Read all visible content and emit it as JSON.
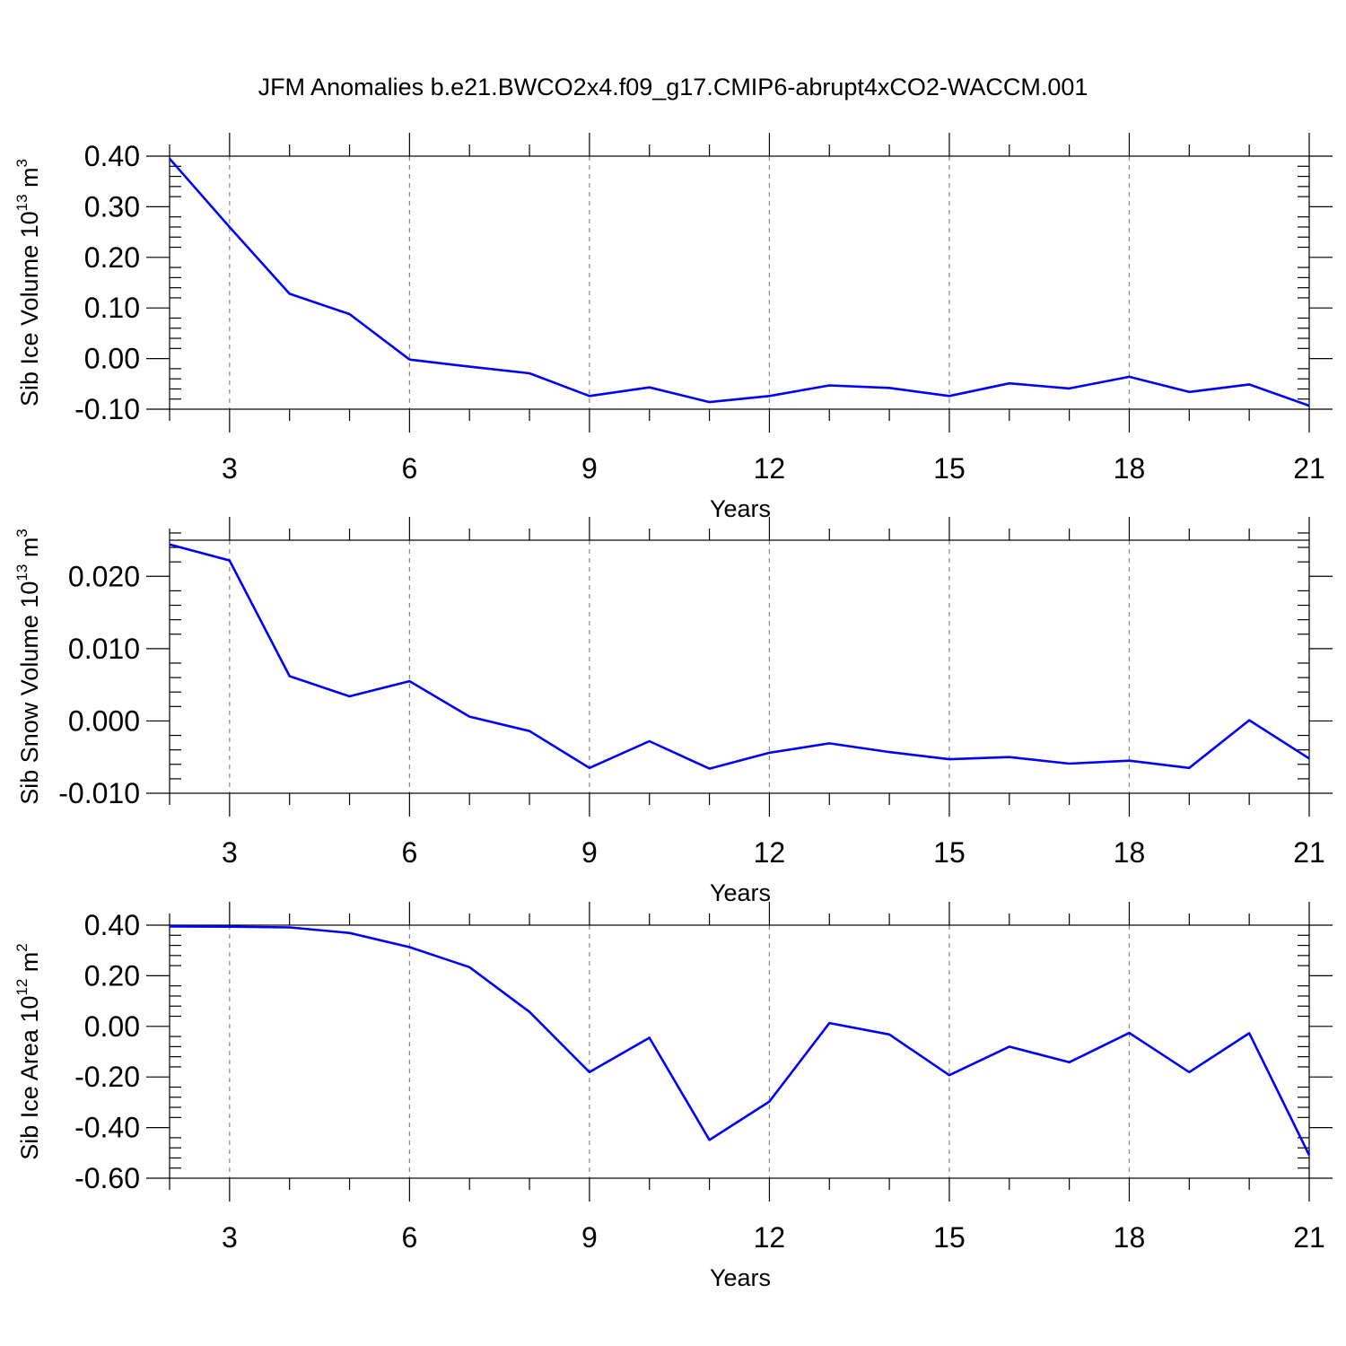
{
  "title": "JFM Anomalies b.e21.BWCO2x4.f09_g17.CMIP6-abrupt4xCO2-WACCM.001",
  "colors": {
    "line": "#0000ff",
    "axis": "#000000",
    "grid": "#888888"
  },
  "chart_data": [
    {
      "type": "line",
      "xlabel": "Years",
      "ylabel_main": "Sib Ice Volume 10",
      "ylabel_exp": "13",
      "ylabel_unit": " m",
      "ylabel_unit_exp": "3",
      "xlim": [
        2,
        21
      ],
      "ylim": [
        -0.1,
        0.4
      ],
      "xticks": [
        3,
        6,
        9,
        12,
        15,
        18,
        21
      ],
      "xtick_labels": [
        "3",
        "6",
        "9",
        "12",
        "15",
        "18",
        "21"
      ],
      "yticks": [
        -0.1,
        0.0,
        0.1,
        0.2,
        0.3,
        0.4
      ],
      "ytick_labels": [
        "-0.10",
        "0.00",
        "0.10",
        "0.20",
        "0.30",
        "0.40"
      ],
      "grid": "vertical-dashed",
      "x": [
        2,
        3,
        4,
        5,
        6,
        7,
        8,
        9,
        10,
        11,
        12,
        13,
        14,
        15,
        16,
        17,
        18,
        19,
        20,
        21
      ],
      "values": [
        0.395,
        0.26,
        0.128,
        0.088,
        -0.002,
        -0.016,
        -0.029,
        -0.074,
        -0.057,
        -0.086,
        -0.074,
        -0.053,
        -0.058,
        -0.074,
        -0.049,
        -0.059,
        -0.036,
        -0.066,
        -0.051,
        -0.093
      ]
    },
    {
      "type": "line",
      "xlabel": "Years",
      "ylabel_main": "Sib Snow Volume 10",
      "ylabel_exp": "13",
      "ylabel_unit": " m",
      "ylabel_unit_exp": "3",
      "xlim": [
        2,
        21
      ],
      "ylim": [
        -0.01,
        0.025
      ],
      "xticks": [
        3,
        6,
        9,
        12,
        15,
        18,
        21
      ],
      "xtick_labels": [
        "3",
        "6",
        "9",
        "12",
        "15",
        "18",
        "21"
      ],
      "yticks": [
        -0.01,
        0.0,
        0.01,
        0.02
      ],
      "ytick_labels": [
        "-0.010",
        "0.000",
        "0.010",
        "0.020"
      ],
      "grid": "vertical-dashed",
      "x": [
        2,
        3,
        4,
        5,
        6,
        7,
        8,
        9,
        10,
        11,
        12,
        13,
        14,
        15,
        16,
        17,
        18,
        19,
        20,
        21
      ],
      "values": [
        0.0244,
        0.0222,
        0.0062,
        0.0034,
        0.0055,
        0.0006,
        -0.0014,
        -0.0065,
        -0.0028,
        -0.0066,
        -0.0044,
        -0.0031,
        -0.0043,
        -0.0053,
        -0.005,
        -0.0059,
        -0.0055,
        -0.0065,
        0.0001,
        -0.0052
      ]
    },
    {
      "type": "line",
      "xlabel": "Years",
      "ylabel_main": "Sib Ice Area 10",
      "ylabel_exp": "12",
      "ylabel_unit": " m",
      "ylabel_unit_exp": "2",
      "xlim": [
        2,
        21
      ],
      "ylim": [
        -0.6,
        0.4
      ],
      "xticks": [
        3,
        6,
        9,
        12,
        15,
        18,
        21
      ],
      "xtick_labels": [
        "3",
        "6",
        "9",
        "12",
        "15",
        "18",
        "21"
      ],
      "yticks": [
        -0.6,
        -0.4,
        -0.2,
        0.0,
        0.2,
        0.4
      ],
      "ytick_labels": [
        "-0.60",
        "-0.40",
        "-0.20",
        "0.00",
        "0.20",
        "0.40"
      ],
      "grid": "vertical-dashed",
      "x": [
        2,
        3,
        4,
        5,
        6,
        7,
        8,
        9,
        10,
        11,
        12,
        13,
        14,
        15,
        16,
        17,
        18,
        19,
        20,
        21
      ],
      "values": [
        0.395,
        0.394,
        0.391,
        0.369,
        0.313,
        0.234,
        0.057,
        -0.181,
        -0.045,
        -0.449,
        -0.297,
        0.013,
        -0.032,
        -0.193,
        -0.08,
        -0.142,
        -0.026,
        -0.181,
        -0.027,
        -0.509
      ]
    }
  ]
}
